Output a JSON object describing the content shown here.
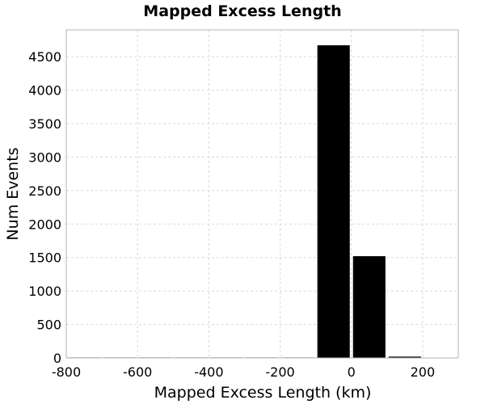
{
  "chart_data": {
    "type": "bar",
    "title": "Mapped Excess Length",
    "xlabel": "Mapped Excess Length (km)",
    "ylabel": "Num Events",
    "xlim": [
      -800,
      300
    ],
    "ylim": [
      0,
      4900
    ],
    "x_ticks": [
      -800,
      -600,
      -400,
      -200,
      0,
      200
    ],
    "y_ticks": [
      0,
      500,
      1000,
      1500,
      2000,
      2500,
      3000,
      3500,
      4000,
      4500
    ],
    "grid": true,
    "colors": {
      "bar": "#000000",
      "grid": "#d8d8d8",
      "frame": "#b5b5b5"
    },
    "bins": [
      {
        "x0": -800,
        "x1": -700,
        "value": 0
      },
      {
        "x0": -700,
        "x1": -600,
        "value": 0
      },
      {
        "x0": -600,
        "x1": -500,
        "value": 0
      },
      {
        "x0": -500,
        "x1": -400,
        "value": 0
      },
      {
        "x0": -400,
        "x1": -300,
        "value": 0
      },
      {
        "x0": -300,
        "x1": -200,
        "value": 0
      },
      {
        "x0": -200,
        "x1": -100,
        "value": 0
      },
      {
        "x0": -100,
        "x1": 0,
        "value": 4670
      },
      {
        "x0": 0,
        "x1": 100,
        "value": 1520
      },
      {
        "x0": 100,
        "x1": 200,
        "value": 20
      }
    ]
  }
}
